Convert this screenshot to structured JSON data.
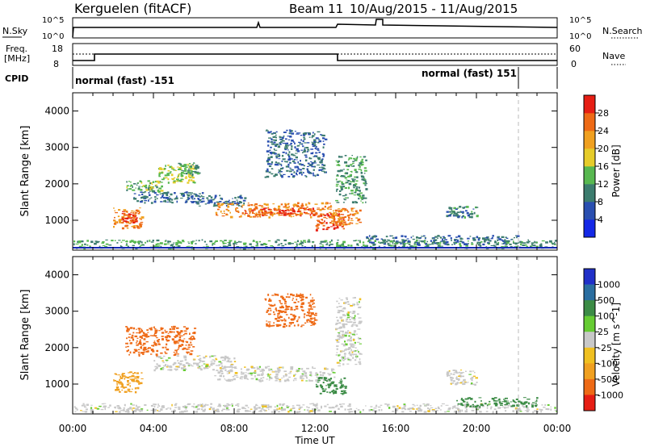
{
  "header": {
    "radar": "Kerguelen (fitACF)",
    "beam": "Beam 11",
    "date_range": "10/Aug/2015 - 11/Aug/2015"
  },
  "params": {
    "nsky_label": "N.Sky",
    "nsearch_label": "N.Search",
    "freq_label_top": "Freq.",
    "freq_label_unit": "[MHz]",
    "nave_label": "Nave",
    "cpid_label": "CPID",
    "log_top": "10^5",
    "log_bottom": "10^0",
    "freq_top": "18",
    "freq_bottom": "8",
    "nave_top": "60",
    "nave_bottom": "0",
    "cpid_left": "normal (fast) -151",
    "cpid_right": "normal (fast) 151"
  },
  "x_axis": {
    "label": "Time UT",
    "ticks": [
      "00:00",
      "04:00",
      "08:00",
      "12:00",
      "16:00",
      "20:00",
      "00:00"
    ],
    "range_hours": [
      0,
      24
    ]
  },
  "colorbars": {
    "power": {
      "label": "Power [dB]",
      "ticks": [
        "4",
        "8",
        "12",
        "16",
        "20",
        "24",
        "28"
      ],
      "colors": [
        "#1428e6",
        "#2a4fb0",
        "#3c7c6e",
        "#58b850",
        "#e6cc2a",
        "#f0a020",
        "#ee6a16",
        "#e61e14"
      ]
    },
    "velocity": {
      "label": "Velocity [m s^-1]",
      "ticks": [
        "1000",
        "500",
        "100",
        "25",
        "-25",
        "-100",
        "-500",
        "-1000"
      ],
      "colors": [
        "#2030c8",
        "#2a6ea0",
        "#3c8c46",
        "#66cc33",
        "#c8c8c8",
        "#f0c020",
        "#f0a020",
        "#ee6a16",
        "#e61e14"
      ]
    }
  },
  "chart_data": [
    {
      "type": "heatmap",
      "title": "Power",
      "xlabel": "Time UT",
      "ylabel": "Slant Range [km]",
      "xlim": [
        0,
        24
      ],
      "ylim": [
        180,
        4500
      ],
      "yticks": [
        1000,
        2000,
        3000,
        4000
      ],
      "colorbar": "Power [dB]",
      "patches": [
        {
          "t": [
            2.0,
            3.4
          ],
          "r": [
            800,
            1350
          ],
          "v": 24
        },
        {
          "t": [
            2.4,
            3.2
          ],
          "r": [
            950,
            1250
          ],
          "v": 28
        },
        {
          "t": [
            2.6,
            4.4
          ],
          "r": [
            1800,
            2100
          ],
          "v": 14
        },
        {
          "t": [
            4.2,
            6.0
          ],
          "r": [
            2050,
            2550
          ],
          "v": 16
        },
        {
          "t": [
            5.2,
            6.2
          ],
          "r": [
            2250,
            2600
          ],
          "v": 12
        },
        {
          "t": [
            3.0,
            6.5
          ],
          "r": [
            1500,
            1800
          ],
          "v": 8
        },
        {
          "t": [
            6.0,
            8.5
          ],
          "r": [
            1400,
            1700
          ],
          "v": 8
        },
        {
          "t": [
            7.0,
            13.0
          ],
          "r": [
            1100,
            1500
          ],
          "v": 24
        },
        {
          "t": [
            8.5,
            12.0
          ],
          "r": [
            1150,
            1350
          ],
          "v": 28
        },
        {
          "t": [
            12.0,
            13.5
          ],
          "r": [
            750,
            1200
          ],
          "v": 28
        },
        {
          "t": [
            12.8,
            14.2
          ],
          "r": [
            900,
            1350
          ],
          "v": 24
        },
        {
          "t": [
            9.5,
            12.5
          ],
          "r": [
            2200,
            3500
          ],
          "v": 8
        },
        {
          "t": [
            13.0,
            14.5
          ],
          "r": [
            1500,
            2800
          ],
          "v": 12
        },
        {
          "t": [
            18.5,
            20.0
          ],
          "r": [
            1100,
            1400
          ],
          "v": 10
        },
        {
          "t": [
            0.0,
            24.0
          ],
          "r": [
            250,
            480
          ],
          "v": 12
        },
        {
          "t": [
            14.5,
            22.0
          ],
          "r": [
            350,
            600
          ],
          "v": 8
        }
      ]
    },
    {
      "type": "heatmap",
      "title": "Velocity",
      "xlabel": "Time UT",
      "ylabel": "Slant Range [km]",
      "xlim": [
        0,
        24
      ],
      "ylim": [
        180,
        4500
      ],
      "yticks": [
        1000,
        2000,
        3000,
        4000
      ],
      "colorbar": "Velocity [m s^-1]",
      "patches": [
        {
          "t": [
            2.0,
            3.4
          ],
          "r": [
            800,
            1350
          ],
          "v": -100
        },
        {
          "t": [
            2.6,
            6.0
          ],
          "r": [
            1800,
            2600
          ],
          "v": -500
        },
        {
          "t": [
            4.0,
            8.0
          ],
          "r": [
            1400,
            1800
          ],
          "v": 0
        },
        {
          "t": [
            7.0,
            13.0
          ],
          "r": [
            1100,
            1500
          ],
          "v": 0
        },
        {
          "t": [
            12.0,
            13.5
          ],
          "r": [
            750,
            1200
          ],
          "v": 100
        },
        {
          "t": [
            9.5,
            12.0
          ],
          "r": [
            2600,
            3500
          ],
          "v": -500
        },
        {
          "t": [
            13.0,
            14.2
          ],
          "r": [
            1500,
            3400
          ],
          "v": 0
        },
        {
          "t": [
            18.5,
            20.0
          ],
          "r": [
            1000,
            1400
          ],
          "v": 0
        },
        {
          "t": [
            0.0,
            24.0
          ],
          "r": [
            250,
            480
          ],
          "v": 0
        },
        {
          "t": [
            19.0,
            23.0
          ],
          "r": [
            400,
            650
          ],
          "v": 100
        }
      ]
    }
  ]
}
